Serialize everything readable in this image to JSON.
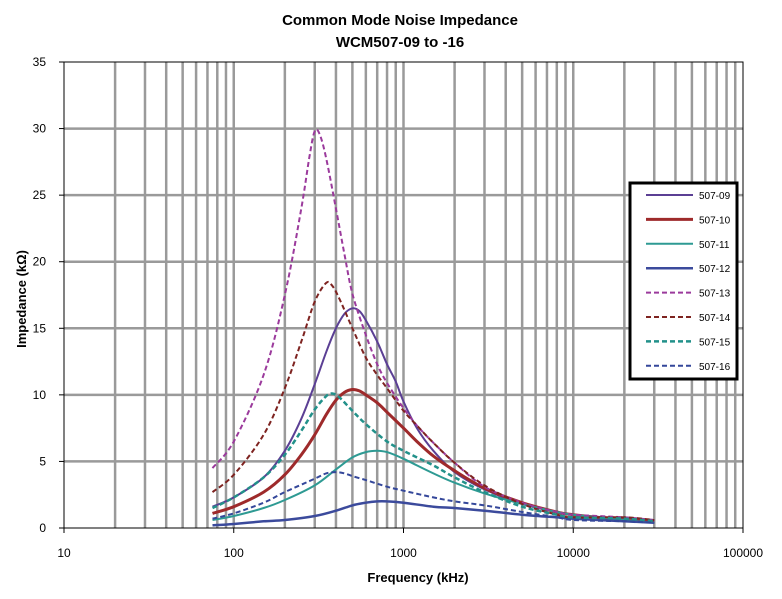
{
  "chart_data": {
    "type": "line",
    "title": "Common Mode Noise Impedance",
    "subtitle": "WCM507-09 to -16",
    "xlabel": "Frequency (kHz)",
    "ylabel": "Impedance (kΩ)",
    "x_scale": "log",
    "xlim": [
      10,
      100000
    ],
    "ylim": [
      0,
      35
    ],
    "x_ticks": [
      "10",
      "100",
      "1000",
      "10000",
      "100000"
    ],
    "y_ticks": [
      "0",
      "5",
      "10",
      "15",
      "20",
      "25",
      "30",
      "35"
    ],
    "grid": true,
    "legend_position": "right",
    "series": [
      {
        "name": "507-09",
        "color": "#5b3f94",
        "style": "solid",
        "width": 2,
        "points": [
          [
            75,
            1.6
          ],
          [
            100,
            2.3
          ],
          [
            150,
            3.8
          ],
          [
            200,
            5.8
          ],
          [
            250,
            8.2
          ],
          [
            300,
            10.8
          ],
          [
            350,
            13.2
          ],
          [
            400,
            15.0
          ],
          [
            450,
            16.1
          ],
          [
            500,
            16.5
          ],
          [
            550,
            16.3
          ],
          [
            600,
            15.6
          ],
          [
            700,
            14.0
          ],
          [
            800,
            12.3
          ],
          [
            900,
            11.0
          ],
          [
            1000,
            9.5
          ],
          [
            1200,
            7.5
          ],
          [
            1500,
            5.8
          ],
          [
            2000,
            4.2
          ],
          [
            3000,
            2.9
          ],
          [
            5000,
            1.8
          ],
          [
            8000,
            1.2
          ],
          [
            10000,
            1.0
          ],
          [
            20000,
            0.7
          ],
          [
            30000,
            0.6
          ]
        ]
      },
      {
        "name": "507-10",
        "color": "#9e2a2b",
        "style": "solid",
        "width": 3,
        "points": [
          [
            75,
            1.1
          ],
          [
            100,
            1.6
          ],
          [
            150,
            2.7
          ],
          [
            200,
            4.0
          ],
          [
            250,
            5.5
          ],
          [
            300,
            7.0
          ],
          [
            350,
            8.5
          ],
          [
            400,
            9.6
          ],
          [
            450,
            10.2
          ],
          [
            500,
            10.4
          ],
          [
            550,
            10.3
          ],
          [
            600,
            10.0
          ],
          [
            700,
            9.4
          ],
          [
            800,
            8.7
          ],
          [
            1000,
            7.5
          ],
          [
            1200,
            6.5
          ],
          [
            1500,
            5.4
          ],
          [
            2000,
            4.3
          ],
          [
            3000,
            3.0
          ],
          [
            5000,
            1.9
          ],
          [
            8000,
            1.2
          ],
          [
            10000,
            1.0
          ],
          [
            20000,
            0.6
          ],
          [
            30000,
            0.5
          ]
        ]
      },
      {
        "name": "507-11",
        "color": "#2e9a93",
        "style": "solid",
        "width": 2,
        "points": [
          [
            75,
            0.6
          ],
          [
            100,
            0.9
          ],
          [
            150,
            1.5
          ],
          [
            200,
            2.1
          ],
          [
            300,
            3.2
          ],
          [
            400,
            4.4
          ],
          [
            500,
            5.3
          ],
          [
            600,
            5.7
          ],
          [
            700,
            5.8
          ],
          [
            800,
            5.7
          ],
          [
            1000,
            5.2
          ],
          [
            1200,
            4.7
          ],
          [
            1500,
            4.1
          ],
          [
            2000,
            3.4
          ],
          [
            3000,
            2.6
          ],
          [
            5000,
            1.8
          ],
          [
            8000,
            1.2
          ],
          [
            10000,
            1.0
          ],
          [
            20000,
            0.6
          ],
          [
            30000,
            0.4
          ]
        ]
      },
      {
        "name": "507-12",
        "color": "#3b4a9c",
        "style": "solid",
        "width": 2.5,
        "points": [
          [
            75,
            0.2
          ],
          [
            100,
            0.3
          ],
          [
            150,
            0.5
          ],
          [
            200,
            0.6
          ],
          [
            300,
            0.9
          ],
          [
            400,
            1.3
          ],
          [
            500,
            1.7
          ],
          [
            600,
            1.9
          ],
          [
            700,
            2.0
          ],
          [
            800,
            2.0
          ],
          [
            1000,
            1.9
          ],
          [
            1500,
            1.6
          ],
          [
            2000,
            1.5
          ],
          [
            3000,
            1.3
          ],
          [
            5000,
            1.0
          ],
          [
            8000,
            0.8
          ],
          [
            10000,
            0.7
          ],
          [
            20000,
            0.5
          ],
          [
            30000,
            0.4
          ]
        ]
      },
      {
        "name": "507-13",
        "color": "#9b3a9c",
        "style": "dashed",
        "width": 2,
        "points": [
          [
            75,
            4.5
          ],
          [
            100,
            6.5
          ],
          [
            150,
            11.5
          ],
          [
            200,
            17.5
          ],
          [
            250,
            24.0
          ],
          [
            280,
            28.0
          ],
          [
            300,
            29.8
          ],
          [
            320,
            29.6
          ],
          [
            350,
            27.8
          ],
          [
            400,
            24.0
          ],
          [
            450,
            20.5
          ],
          [
            500,
            17.6
          ],
          [
            600,
            14.5
          ],
          [
            700,
            12.3
          ],
          [
            800,
            10.9
          ],
          [
            1000,
            9.0
          ],
          [
            1200,
            7.7
          ],
          [
            1500,
            6.4
          ],
          [
            2000,
            4.9
          ],
          [
            3000,
            3.1
          ],
          [
            5000,
            1.9
          ],
          [
            8000,
            1.2
          ],
          [
            10000,
            1.0
          ],
          [
            20000,
            0.8
          ],
          [
            30000,
            0.6
          ]
        ]
      },
      {
        "name": "507-14",
        "color": "#7e2320",
        "style": "dashed",
        "width": 2,
        "points": [
          [
            75,
            2.7
          ],
          [
            100,
            4.0
          ],
          [
            150,
            7.0
          ],
          [
            200,
            10.5
          ],
          [
            250,
            14.0
          ],
          [
            300,
            17.0
          ],
          [
            350,
            18.4
          ],
          [
            380,
            18.2
          ],
          [
            420,
            17.2
          ],
          [
            500,
            15.0
          ],
          [
            600,
            12.8
          ],
          [
            700,
            11.5
          ],
          [
            800,
            10.5
          ],
          [
            1000,
            8.8
          ],
          [
            1200,
            7.7
          ],
          [
            1500,
            6.4
          ],
          [
            2000,
            4.9
          ],
          [
            3000,
            3.2
          ],
          [
            5000,
            1.8
          ],
          [
            8000,
            1.0
          ],
          [
            10000,
            0.8
          ],
          [
            20000,
            0.8
          ],
          [
            30000,
            0.6
          ]
        ]
      },
      {
        "name": "507-15",
        "color": "#22918a",
        "style": "dashed",
        "width": 2.5,
        "points": [
          [
            75,
            1.5
          ],
          [
            100,
            2.3
          ],
          [
            150,
            3.8
          ],
          [
            200,
            5.5
          ],
          [
            250,
            7.3
          ],
          [
            300,
            8.9
          ],
          [
            350,
            9.9
          ],
          [
            380,
            10.1
          ],
          [
            420,
            9.8
          ],
          [
            500,
            8.8
          ],
          [
            600,
            7.8
          ],
          [
            800,
            6.5
          ],
          [
            1000,
            5.8
          ],
          [
            1500,
            4.7
          ],
          [
            2000,
            3.8
          ],
          [
            3000,
            2.7
          ],
          [
            5000,
            1.6
          ],
          [
            8000,
            1.0
          ],
          [
            10000,
            0.8
          ],
          [
            20000,
            0.7
          ],
          [
            30000,
            0.5
          ]
        ]
      },
      {
        "name": "507-16",
        "color": "#34479a",
        "style": "dashed",
        "width": 2,
        "points": [
          [
            75,
            0.7
          ],
          [
            100,
            1.1
          ],
          [
            150,
            1.9
          ],
          [
            200,
            2.7
          ],
          [
            300,
            3.7
          ],
          [
            350,
            4.1
          ],
          [
            400,
            4.2
          ],
          [
            450,
            4.1
          ],
          [
            500,
            3.9
          ],
          [
            600,
            3.6
          ],
          [
            800,
            3.1
          ],
          [
            1000,
            2.8
          ],
          [
            1500,
            2.3
          ],
          [
            2000,
            2.0
          ],
          [
            3000,
            1.7
          ],
          [
            5000,
            1.2
          ],
          [
            8000,
            0.8
          ],
          [
            10000,
            0.6
          ],
          [
            20000,
            0.5
          ],
          [
            30000,
            0.4
          ]
        ]
      }
    ]
  }
}
